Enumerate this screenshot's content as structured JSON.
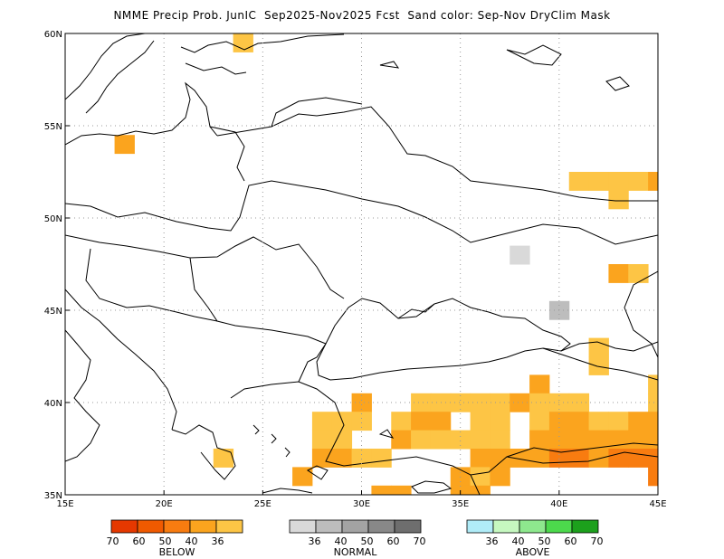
{
  "title": "NMME Precip Prob. JunIC  Sep2025-Nov2025 Fcst  Sand color: Sep-Nov DryClim Mask",
  "map": {
    "lon_range": [
      15,
      45
    ],
    "lat_range": [
      35,
      60
    ],
    "lon_ticks": [
      "15E",
      "20E",
      "25E",
      "30E",
      "35E",
      "40E",
      "45E"
    ],
    "lat_ticks": [
      "35N",
      "40N",
      "45N",
      "50N",
      "55N",
      "60N"
    ],
    "grid": true,
    "cell_size_deg": 1,
    "cells": [
      {
        "lon": 24,
        "lat": 59.5,
        "c": "b36"
      },
      {
        "lon": 18,
        "lat": 54,
        "c": "b40"
      },
      {
        "lon": 41,
        "lat": 52,
        "c": "b36"
      },
      {
        "lon": 42,
        "lat": 52,
        "c": "b36"
      },
      {
        "lon": 43,
        "lat": 52,
        "c": "b36"
      },
      {
        "lon": 44,
        "lat": 52,
        "c": "b36"
      },
      {
        "lon": 45,
        "lat": 52,
        "c": "b40"
      },
      {
        "lon": 43,
        "lat": 51,
        "c": "b36"
      },
      {
        "lon": 38,
        "lat": 48,
        "c": "n36"
      },
      {
        "lon": 43,
        "lat": 47,
        "c": "b40"
      },
      {
        "lon": 44,
        "lat": 47,
        "c": "b36"
      },
      {
        "lon": 40,
        "lat": 45,
        "c": "n40"
      },
      {
        "lon": 42,
        "lat": 43,
        "c": "b36"
      },
      {
        "lon": 42,
        "lat": 42,
        "c": "b36"
      },
      {
        "lon": 39,
        "lat": 41,
        "c": "b40"
      },
      {
        "lon": 45,
        "lat": 41,
        "c": "b36"
      },
      {
        "lon": 30,
        "lat": 40,
        "c": "b40"
      },
      {
        "lon": 33,
        "lat": 40,
        "c": "b36"
      },
      {
        "lon": 34,
        "lat": 40,
        "c": "b36"
      },
      {
        "lon": 35,
        "lat": 40,
        "c": "b36"
      },
      {
        "lon": 36,
        "lat": 40,
        "c": "b36"
      },
      {
        "lon": 37,
        "lat": 40,
        "c": "b36"
      },
      {
        "lon": 38,
        "lat": 40,
        "c": "b40"
      },
      {
        "lon": 39,
        "lat": 40,
        "c": "b36"
      },
      {
        "lon": 40,
        "lat": 40,
        "c": "b36"
      },
      {
        "lon": 41,
        "lat": 40,
        "c": "b36"
      },
      {
        "lon": 45,
        "lat": 40,
        "c": "b36"
      },
      {
        "lon": 28,
        "lat": 39,
        "c": "b36"
      },
      {
        "lon": 29,
        "lat": 39,
        "c": "b36"
      },
      {
        "lon": 30,
        "lat": 39,
        "c": "b36"
      },
      {
        "lon": 32,
        "lat": 39,
        "c": "b36"
      },
      {
        "lon": 33,
        "lat": 39,
        "c": "b40"
      },
      {
        "lon": 34,
        "lat": 39,
        "c": "b40"
      },
      {
        "lon": 36,
        "lat": 39,
        "c": "b36"
      },
      {
        "lon": 37,
        "lat": 39,
        "c": "b36"
      },
      {
        "lon": 39,
        "lat": 39,
        "c": "b36"
      },
      {
        "lon": 40,
        "lat": 39,
        "c": "b40"
      },
      {
        "lon": 41,
        "lat": 39,
        "c": "b40"
      },
      {
        "lon": 42,
        "lat": 39,
        "c": "b36"
      },
      {
        "lon": 43,
        "lat": 39,
        "c": "b36"
      },
      {
        "lon": 44,
        "lat": 39,
        "c": "b40"
      },
      {
        "lon": 45,
        "lat": 39,
        "c": "b40"
      },
      {
        "lon": 28,
        "lat": 38,
        "c": "b36"
      },
      {
        "lon": 29,
        "lat": 38,
        "c": "b36"
      },
      {
        "lon": 32,
        "lat": 38,
        "c": "b40"
      },
      {
        "lon": 33,
        "lat": 38,
        "c": "b36"
      },
      {
        "lon": 34,
        "lat": 38,
        "c": "b36"
      },
      {
        "lon": 35,
        "lat": 38,
        "c": "b36"
      },
      {
        "lon": 36,
        "lat": 38,
        "c": "b36"
      },
      {
        "lon": 37,
        "lat": 38,
        "c": "b36"
      },
      {
        "lon": 39,
        "lat": 38,
        "c": "b40"
      },
      {
        "lon": 40,
        "lat": 38,
        "c": "b40"
      },
      {
        "lon": 41,
        "lat": 38,
        "c": "b40"
      },
      {
        "lon": 42,
        "lat": 38,
        "c": "b40"
      },
      {
        "lon": 43,
        "lat": 38,
        "c": "b40"
      },
      {
        "lon": 44,
        "lat": 38,
        "c": "b40"
      },
      {
        "lon": 45,
        "lat": 38,
        "c": "b40"
      },
      {
        "lon": 23,
        "lat": 37,
        "c": "b36"
      },
      {
        "lon": 28,
        "lat": 37,
        "c": "b40"
      },
      {
        "lon": 29,
        "lat": 37,
        "c": "b40"
      },
      {
        "lon": 30,
        "lat": 37,
        "c": "b36"
      },
      {
        "lon": 31,
        "lat": 37,
        "c": "b36"
      },
      {
        "lon": 36,
        "lat": 37,
        "c": "b40"
      },
      {
        "lon": 37,
        "lat": 37,
        "c": "b40"
      },
      {
        "lon": 38,
        "lat": 37,
        "c": "b40"
      },
      {
        "lon": 39,
        "lat": 37,
        "c": "b40"
      },
      {
        "lon": 40,
        "lat": 37,
        "c": "b50"
      },
      {
        "lon": 41,
        "lat": 37,
        "c": "b50"
      },
      {
        "lon": 42,
        "lat": 37,
        "c": "b40"
      },
      {
        "lon": 43,
        "lat": 37,
        "c": "b50"
      },
      {
        "lon": 44,
        "lat": 37,
        "c": "b50"
      },
      {
        "lon": 45,
        "lat": 37,
        "c": "b50"
      },
      {
        "lon": 27,
        "lat": 36,
        "c": "b40"
      },
      {
        "lon": 35,
        "lat": 36,
        "c": "b40"
      },
      {
        "lon": 36,
        "lat": 36,
        "c": "b36"
      },
      {
        "lon": 37,
        "lat": 36,
        "c": "b40"
      },
      {
        "lon": 45,
        "lat": 36,
        "c": "b50"
      },
      {
        "lon": 31,
        "lat": 35,
        "c": "b40"
      },
      {
        "lon": 32,
        "lat": 35,
        "c": "b40"
      },
      {
        "lon": 35,
        "lat": 35,
        "c": "b40"
      },
      {
        "lon": 36,
        "lat": 35,
        "c": "b40"
      }
    ]
  },
  "colors": {
    "b70": "#e53800",
    "b60": "#f05a00",
    "b50": "#f87c10",
    "b40": "#fba41e",
    "b36": "#fdc545",
    "n36": "#d9d9d9",
    "n40": "#bdbdbd",
    "n50": "#a3a3a3",
    "n60": "#888888",
    "n70": "#6e6e6e",
    "a36": "#b0ecf8",
    "a40": "#c6f8c0",
    "a50": "#8ee88e",
    "a60": "#4cd94c",
    "a70": "#1ca01c"
  },
  "legend": {
    "below": {
      "label": "BELOW",
      "swatches": [
        "b70",
        "b60",
        "b50",
        "b40",
        "b36"
      ],
      "ticks": [
        "70",
        "60",
        "50",
        "40",
        "36"
      ]
    },
    "normal": {
      "label": "NORMAL",
      "swatches": [
        "n36",
        "n40",
        "n50",
        "n60",
        "n70"
      ],
      "ticks": [
        "36",
        "40",
        "50",
        "60",
        "70"
      ]
    },
    "above": {
      "label": "ABOVE",
      "swatches": [
        "a36",
        "a40",
        "a50",
        "a60",
        "a70"
      ],
      "ticks": [
        "36",
        "40",
        "50",
        "60",
        "70"
      ]
    }
  }
}
